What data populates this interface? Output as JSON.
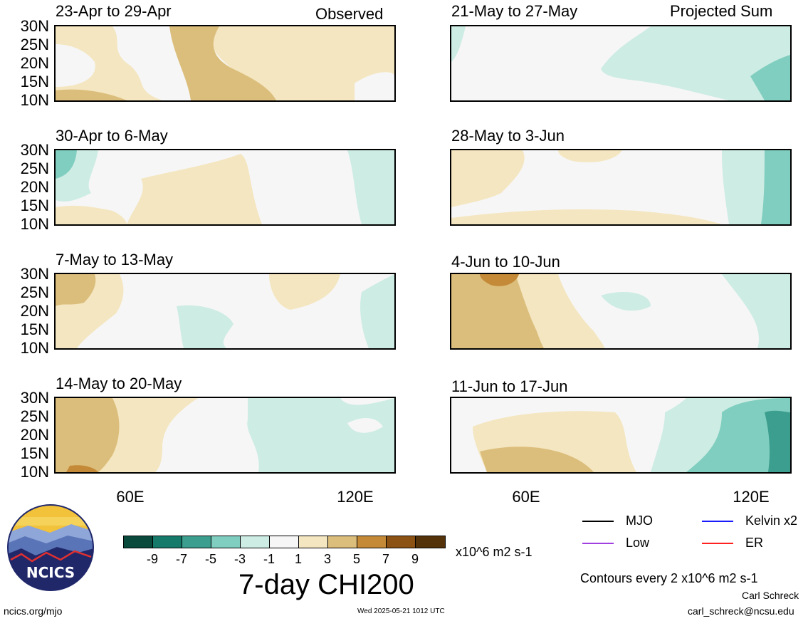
{
  "panels_left": [
    {
      "title": "23-Apr to 29-Apr"
    },
    {
      "title": "30-Apr to 6-May"
    },
    {
      "title": "7-May to 13-May"
    },
    {
      "title": "14-May to 20-May"
    }
  ],
  "panels_right": [
    {
      "title": "21-May to 27-May"
    },
    {
      "title": "28-May to 3-Jun"
    },
    {
      "title": "4-Jun to 10-Jun"
    },
    {
      "title": "11-Jun to 17-Jun"
    }
  ],
  "tags": {
    "observed": "Observed",
    "projected": "Projected Sum"
  },
  "lat_labels": [
    "30N",
    "25N",
    "20N",
    "15N",
    "10N"
  ],
  "lon_labels": [
    "60E",
    "120E"
  ],
  "colorbar": {
    "colors": [
      "#0a4a3c",
      "#167a6a",
      "#3c9e8e",
      "#80cebf",
      "#cdece4",
      "#f6f6f6",
      "#f4e6c0",
      "#dcbe7c",
      "#c48a38",
      "#8c5214",
      "#54320a"
    ],
    "labels": [
      "-9",
      "-7",
      "-5",
      "-3",
      "-1",
      "1",
      "3",
      "5",
      "7",
      "9"
    ],
    "units": "x10^6 m2 s-1"
  },
  "main_title": "7-day CHI200",
  "legend": [
    {
      "label": "MJO",
      "color": "#000000"
    },
    {
      "label": "Kelvin x2",
      "color": "#1a1aff"
    },
    {
      "label": "Low",
      "color": "#a040e0"
    },
    {
      "label": "ER",
      "color": "#ff2020"
    }
  ],
  "contours_note": "Contours every 2 x10^6 m2 s-1",
  "author": "Carl Schreck",
  "email": "carl_schreck@ncsu.edu",
  "website": "ncics.org/mjo",
  "timestamp": "Wed 2025-05-21 1012 UTC",
  "logo_text": "NCICS"
}
